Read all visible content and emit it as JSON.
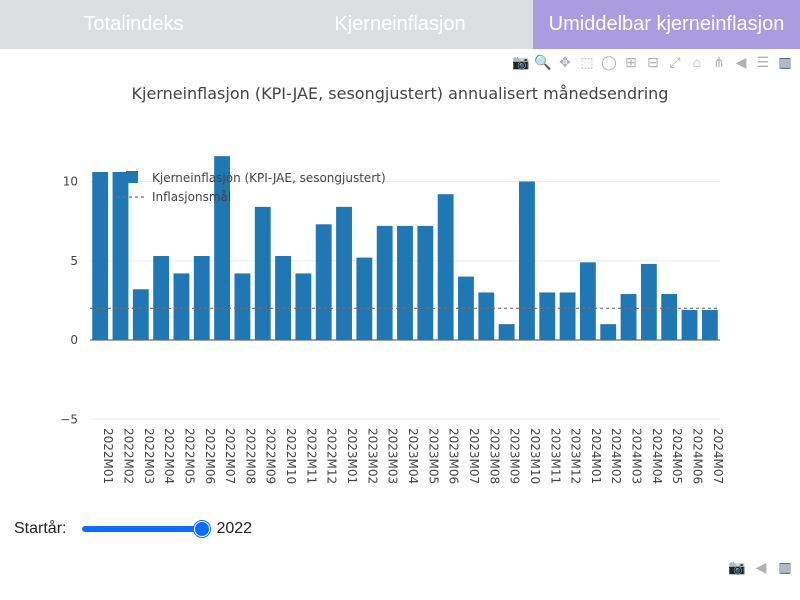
{
  "tabs": [
    {
      "label": "Totalindeks"
    },
    {
      "label": "Kjerneinflasjon"
    },
    {
      "label": "Umiddelbar kjerneinflasjon"
    }
  ],
  "modebar_icons": [
    "camera-icon",
    "zoom-icon",
    "pan-icon",
    "box-select-icon",
    "lasso-icon",
    "zoom-in-icon",
    "zoom-out-icon",
    "autoscale-icon",
    "home-icon",
    "spike-lines-icon",
    "hover-closest-icon",
    "hover-compare-icon",
    "plotly-logo-icon"
  ],
  "slider": {
    "label": "Startår:",
    "value": "2022"
  },
  "chart_data": {
    "type": "bar",
    "title": "Kjerneinflasjon (KPI-JAE, sesongjustert) annualisert månedsendring",
    "categories": [
      "2022M01",
      "2022M02",
      "2022M03",
      "2022M04",
      "2022M05",
      "2022M06",
      "2022M07",
      "2022M08",
      "2022M09",
      "2022M10",
      "2022M11",
      "2022M12",
      "2023M01",
      "2023M02",
      "2023M03",
      "2023M04",
      "2023M05",
      "2023M06",
      "2023M07",
      "2023M08",
      "2023M09",
      "2023M10",
      "2023M11",
      "2023M12",
      "2024M01",
      "2024M02",
      "2024M03",
      "2024M04",
      "2024M05",
      "2024M06",
      "2024M07"
    ],
    "series": [
      {
        "name": "Kjerneinflasjon (KPI-JAE, sesongjustert)",
        "values": [
          10.6,
          10.6,
          3.2,
          5.3,
          4.2,
          5.3,
          11.6,
          4.2,
          8.4,
          5.3,
          4.2,
          7.3,
          8.4,
          5.2,
          7.2,
          7.2,
          7.2,
          9.2,
          4.0,
          3.0,
          1.0,
          10.0,
          3.0,
          3.0,
          4.9,
          1.0,
          2.9,
          4.8,
          2.9,
          1.9,
          1.9
        ],
        "color": "#1f77b4"
      },
      {
        "name": "Inflasjonsmål",
        "value": 2.0,
        "style": "dashed",
        "color": "#707070"
      }
    ],
    "yticks": [
      -5,
      0,
      5,
      10
    ],
    "ylim": [
      -5,
      12.5
    ],
    "grid": true,
    "legend": "top-left"
  }
}
